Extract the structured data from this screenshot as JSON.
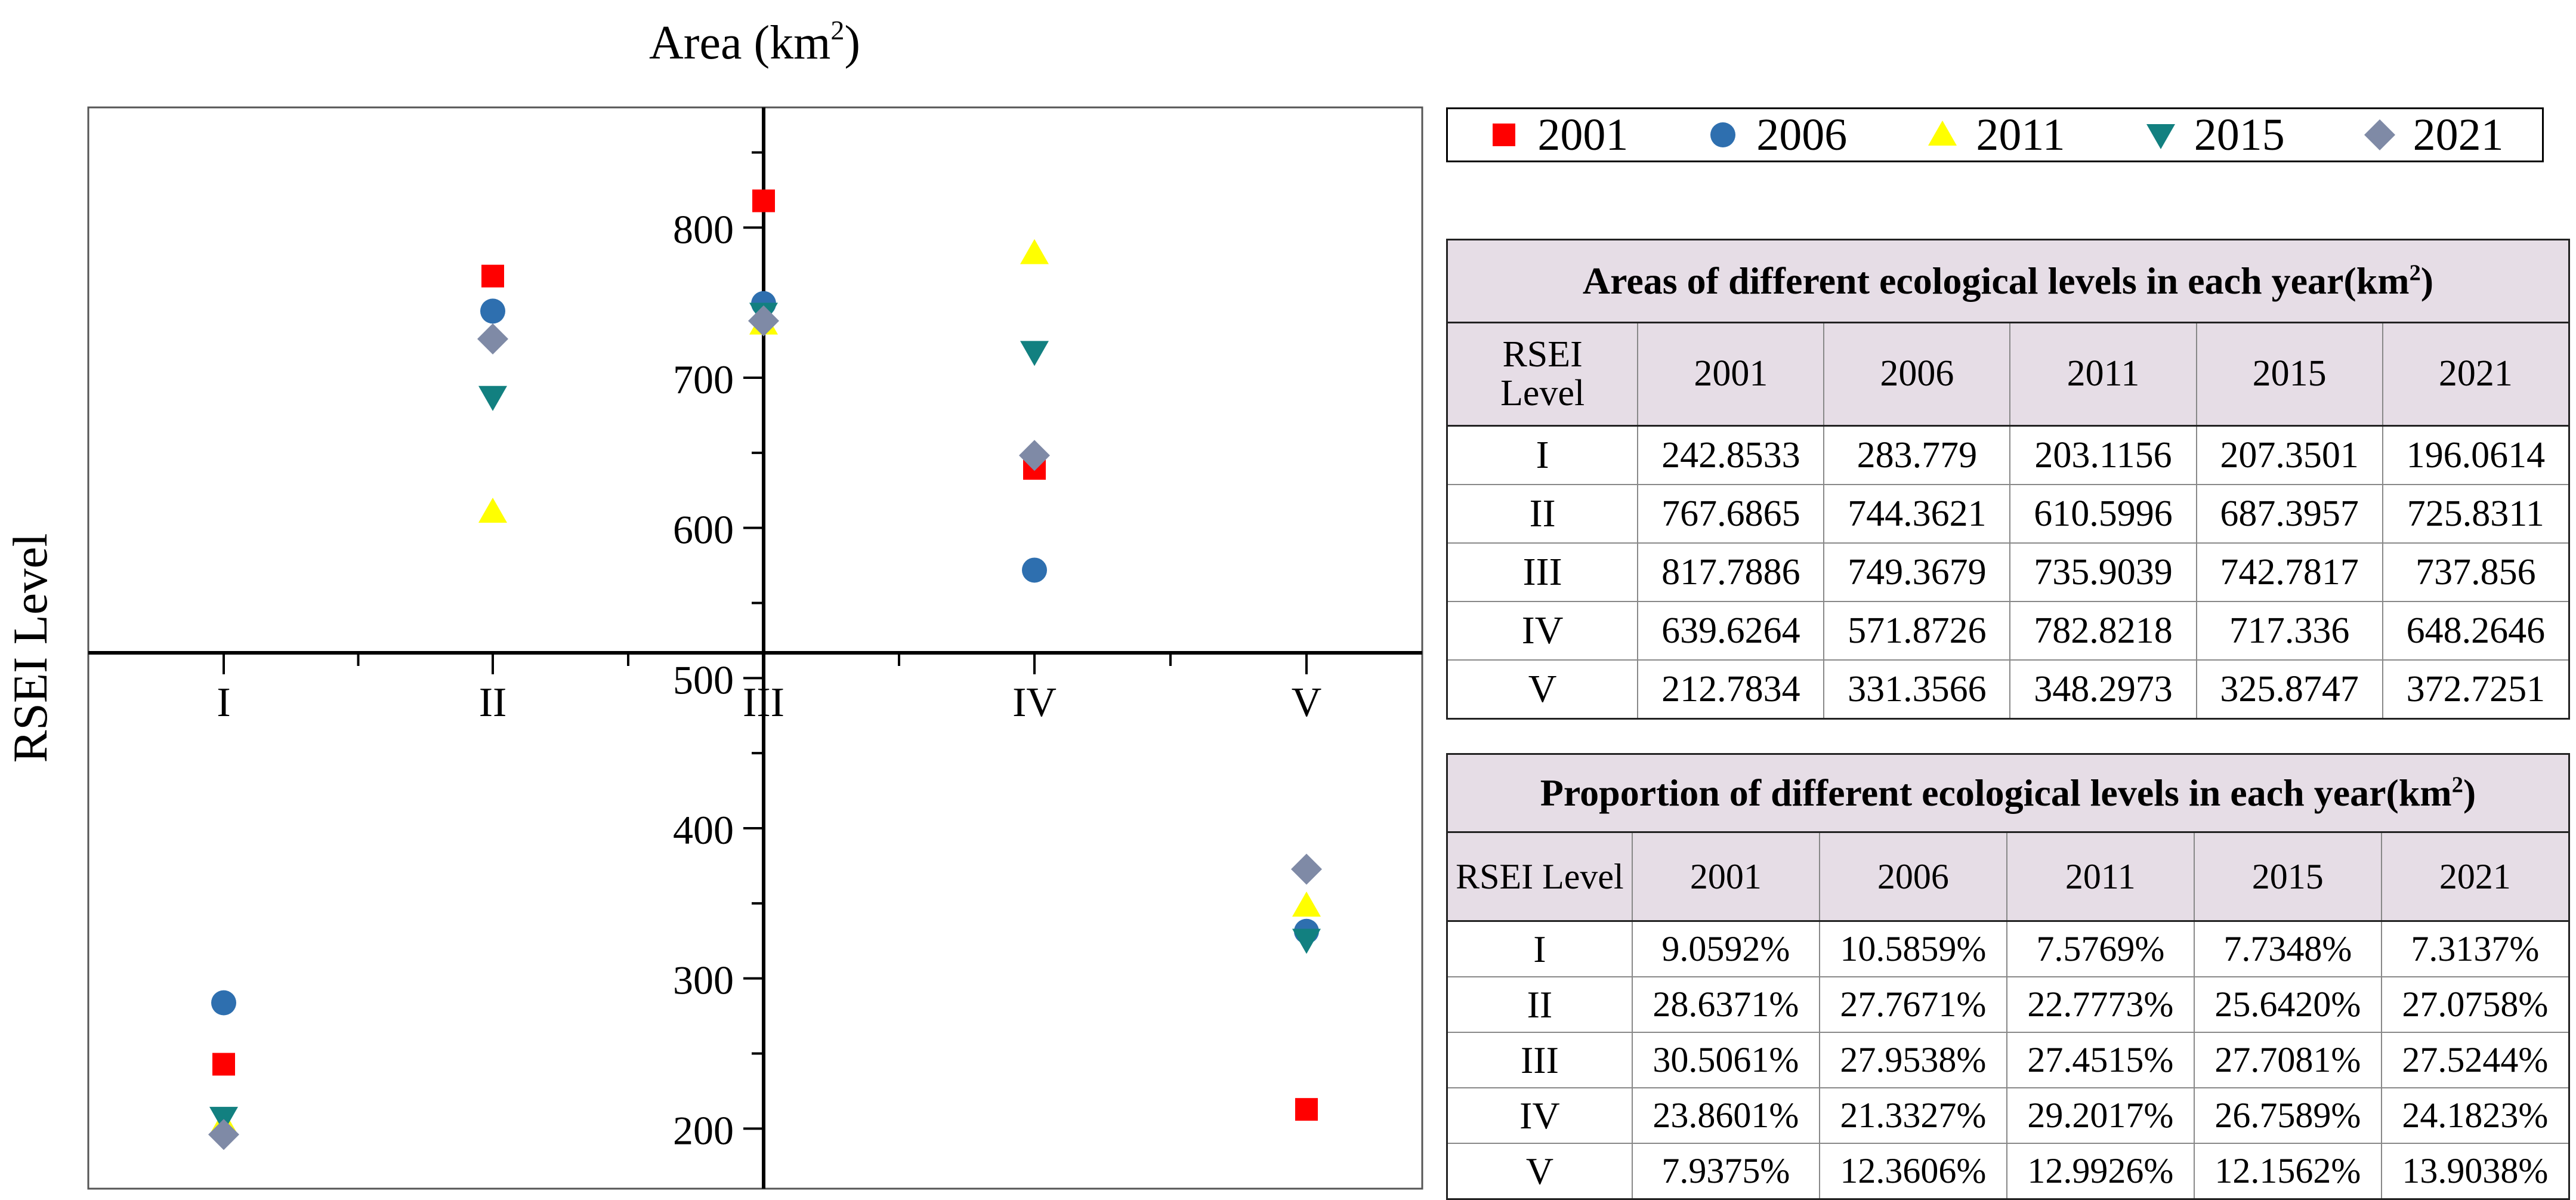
{
  "chart_data": {
    "type": "scatter",
    "title": "",
    "xlabel": "RSEI Level",
    "ylabel": "Area (km",
    "ylabel_sup": "2",
    "ylabel_close": ")",
    "categories": [
      "I",
      "II",
      "III",
      "IV",
      "V"
    ],
    "ylim": [
      160,
      880
    ],
    "y_ticks": [
      "200",
      "300",
      "400",
      "500",
      "600",
      "700",
      "800"
    ],
    "legend_position": "top-right",
    "series": [
      {
        "name": "2001",
        "marker": "square",
        "color": "#ff0000",
        "values": [
          242.8533,
          767.6865,
          817.7886,
          639.6264,
          212.7834
        ]
      },
      {
        "name": "2006",
        "marker": "circle",
        "color": "#2e6faf",
        "values": [
          283.779,
          744.3621,
          749.3679,
          571.8726,
          331.3566
        ]
      },
      {
        "name": "2011",
        "marker": "triangle-up",
        "color": "#ffff00",
        "values": [
          203.1156,
          610.5996,
          735.9039,
          782.8218,
          348.2973
        ]
      },
      {
        "name": "2015",
        "marker": "triangle-down",
        "color": "#128080",
        "values": [
          207.3501,
          687.3957,
          742.7817,
          717.336,
          325.8747
        ]
      },
      {
        "name": "2021",
        "marker": "diamond",
        "color": "#7f8aa6",
        "values": [
          196.0614,
          725.8311,
          737.856,
          648.2646,
          372.7251
        ]
      }
    ]
  },
  "areas_table": {
    "caption": "Areas of different ecological levels in each year(km",
    "caption_sup": "2",
    "caption_close": ")",
    "level_header_line1": "RSEI",
    "level_header_line2": "Level",
    "years": [
      "2001",
      "2006",
      "2011",
      "2015",
      "2021"
    ],
    "rows": [
      {
        "level": "I",
        "values": [
          "242.8533",
          "283.779",
          "203.1156",
          "207.3501",
          "196.0614"
        ]
      },
      {
        "level": "II",
        "values": [
          "767.6865",
          "744.3621",
          "610.5996",
          "687.3957",
          "725.8311"
        ]
      },
      {
        "level": "III",
        "values": [
          "817.7886",
          "749.3679",
          "735.9039",
          "742.7817",
          "737.856"
        ]
      },
      {
        "level": "IV",
        "values": [
          "639.6264",
          "571.8726",
          "782.8218",
          "717.336",
          "648.2646"
        ]
      },
      {
        "level": "V",
        "values": [
          "212.7834",
          "331.3566",
          "348.2973",
          "325.8747",
          "372.7251"
        ]
      }
    ]
  },
  "proportion_table": {
    "caption": "Proportion of different ecological levels in each year(km",
    "caption_sup": "2",
    "caption_close": ")",
    "level_header": "RSEI Level",
    "years": [
      "2001",
      "2006",
      "2011",
      "2015",
      "2021"
    ],
    "rows": [
      {
        "level": "I",
        "values": [
          "9.0592%",
          "10.5859%",
          "7.5769%",
          "7.7348%",
          "7.3137%"
        ]
      },
      {
        "level": "II",
        "values": [
          "28.6371%",
          "27.7671%",
          "22.7773%",
          "25.6420%",
          "27.0758%"
        ]
      },
      {
        "level": "III",
        "values": [
          "30.5061%",
          "27.9538%",
          "27.4515%",
          "27.7081%",
          "27.5244%"
        ]
      },
      {
        "level": "IV",
        "values": [
          "23.8601%",
          "21.3327%",
          "29.2017%",
          "26.7589%",
          "24.1823%"
        ]
      },
      {
        "level": "V",
        "values": [
          "7.9375%",
          "12.3606%",
          "12.9926%",
          "12.1562%",
          "13.9038%"
        ]
      }
    ]
  }
}
